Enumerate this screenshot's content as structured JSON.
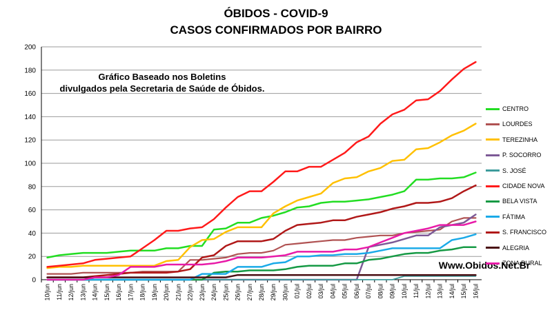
{
  "header": {
    "title_line1": "ÓBIDOS - COVID-9",
    "title_line2": "CASOS CONFIRMADOS POR BAIRRO"
  },
  "annotation": {
    "line1": "Gráfico Baseado nos Boletins",
    "line2": "divulgados pela Secretaria de Saúde de Óbidos."
  },
  "website": "Www.Obidos.Net.Br",
  "chart_data": {
    "type": "line",
    "title": "ÓBIDOS - COVID-9 CASOS CONFIRMADOS POR BAIRRO",
    "xlabel": "",
    "ylabel": "",
    "ylim": [
      0,
      200
    ],
    "y_ticks": [
      0,
      20,
      40,
      60,
      80,
      100,
      120,
      140,
      160,
      180,
      200
    ],
    "grid": true,
    "legend_position": "right",
    "x": [
      "10/jun",
      "11/jun",
      "12/jun",
      "13/jun",
      "14/jun",
      "15/jun",
      "16/jun",
      "17/jun",
      "18/jun",
      "19/jun",
      "20/jun",
      "21/jun",
      "22/jun",
      "23/jun",
      "24/jun",
      "25/jun",
      "26/jun",
      "27/jun",
      "28/jun",
      "29/jun",
      "30/jun",
      "01/jul",
      "02/jul",
      "03/jul",
      "04/jul",
      "05/jul",
      "06/jul",
      "07/jul",
      "08/jul",
      "09/jul",
      "10/jul",
      "11/jul",
      "12/jul",
      "13/jul",
      "14/jul",
      "15/jul",
      "16/jul"
    ],
    "series": [
      {
        "name": "CENTRO",
        "color": "#22dd22",
        "width": 2.5,
        "values": [
          19,
          21,
          22,
          23,
          23,
          23,
          24,
          25,
          25,
          25,
          27,
          27,
          29,
          29,
          43,
          44,
          49,
          49,
          53,
          55,
          58,
          62,
          63,
          66,
          67,
          67,
          68,
          69,
          71,
          73,
          76,
          86,
          86,
          87,
          87,
          88,
          92
        ]
      },
      {
        "name": "LOURDES",
        "color": "#b05252",
        "width": 2.2,
        "values": [
          5,
          5,
          5,
          6,
          6,
          6,
          6,
          6,
          7,
          7,
          7,
          7,
          17,
          17,
          18,
          19,
          22,
          23,
          23,
          25,
          30,
          31,
          32,
          33,
          34,
          34,
          36,
          37,
          38,
          38,
          40,
          41,
          42,
          43,
          50,
          53,
          53
        ]
      },
      {
        "name": "TEREZINHA",
        "color": "#ffc000",
        "width": 2.5,
        "values": [
          10,
          11,
          11,
          12,
          12,
          12,
          12,
          12,
          12,
          12,
          16,
          17,
          28,
          34,
          35,
          41,
          45,
          45,
          45,
          57,
          63,
          68,
          71,
          74,
          83,
          87,
          88,
          93,
          96,
          102,
          103,
          112,
          113,
          118,
          124,
          128,
          134
        ]
      },
      {
        "name": "P. SOCORRO",
        "color": "#7d5a96",
        "width": 2.5,
        "values": [
          0,
          0,
          0,
          0,
          0,
          0,
          0,
          0,
          0,
          0,
          0,
          0,
          0,
          0,
          0,
          0,
          0,
          0,
          0,
          0,
          0,
          0,
          0,
          0,
          0,
          0,
          0,
          28,
          30,
          32,
          35,
          38,
          38,
          45,
          47,
          49,
          56
        ]
      },
      {
        "name": "S. JOSÉ",
        "color": "#3d9c9c",
        "width": 1.8,
        "values": [
          0,
          0,
          0,
          0,
          0,
          0,
          0,
          0,
          0,
          0,
          0,
          0,
          0,
          0,
          0,
          0,
          0,
          0,
          0,
          0,
          0,
          0,
          0,
          0,
          0,
          0,
          0,
          0,
          0,
          0,
          3,
          3,
          3,
          3,
          3,
          3,
          3
        ]
      },
      {
        "name": "CIDADE NOVA",
        "color": "#ff1a1a",
        "width": 2.5,
        "values": [
          11,
          12,
          13,
          14,
          17,
          18,
          19,
          20,
          27,
          34,
          42,
          42,
          44,
          45,
          52,
          62,
          71,
          76,
          76,
          84,
          93,
          93,
          97,
          97,
          103,
          109,
          118,
          123,
          134,
          142,
          146,
          154,
          155,
          162,
          172,
          181,
          187
        ]
      },
      {
        "name": "BELA VISTA",
        "color": "#159944",
        "width": 2.5,
        "values": [
          0,
          0,
          0,
          0,
          0,
          0,
          0,
          0,
          0,
          0,
          0,
          0,
          0,
          0,
          6,
          7,
          7,
          8,
          8,
          8,
          9,
          11,
          12,
          12,
          12,
          14,
          14,
          17,
          18,
          20,
          22,
          23,
          23,
          25,
          26,
          28,
          28
        ]
      },
      {
        "name": "FÁTIMA",
        "color": "#1aaae8",
        "width": 2.5,
        "values": [
          0,
          0,
          0,
          0,
          0,
          0,
          0,
          0,
          0,
          0,
          0,
          0,
          0,
          5,
          5,
          5,
          11,
          11,
          11,
          14,
          15,
          20,
          20,
          21,
          21,
          22,
          22,
          23,
          25,
          27,
          27,
          27,
          27,
          27,
          34,
          36,
          39
        ]
      },
      {
        "name": "S. FRANCISCO",
        "color": "#b01818",
        "width": 2.5,
        "values": [
          2,
          2,
          2,
          2,
          3,
          4,
          5,
          6,
          6,
          6,
          6,
          7,
          9,
          19,
          21,
          29,
          33,
          33,
          33,
          35,
          42,
          47,
          48,
          49,
          51,
          51,
          54,
          56,
          58,
          61,
          63,
          66,
          66,
          67,
          70,
          76,
          81
        ]
      },
      {
        "name": "ALEGRIA",
        "color": "#4a0f14",
        "width": 2.5,
        "values": [
          2,
          2,
          2,
          2,
          2,
          2,
          2,
          2,
          2,
          2,
          2,
          2,
          2,
          2,
          2,
          2,
          4,
          4,
          4,
          4,
          4,
          4,
          4,
          4,
          4,
          4,
          4,
          4,
          4,
          4,
          4,
          4,
          4,
          4,
          4,
          4,
          4
        ]
      },
      {
        "name": "ZONA RURAL",
        "color": "#e81aa8",
        "width": 2.5,
        "values": [
          0,
          0,
          0,
          0,
          2,
          2,
          4,
          11,
          11,
          11,
          13,
          13,
          13,
          13,
          14,
          16,
          19,
          19,
          19,
          20,
          21,
          24,
          24,
          24,
          24,
          26,
          26,
          28,
          32,
          36,
          40,
          42,
          44,
          47,
          47,
          47,
          50
        ]
      }
    ]
  }
}
